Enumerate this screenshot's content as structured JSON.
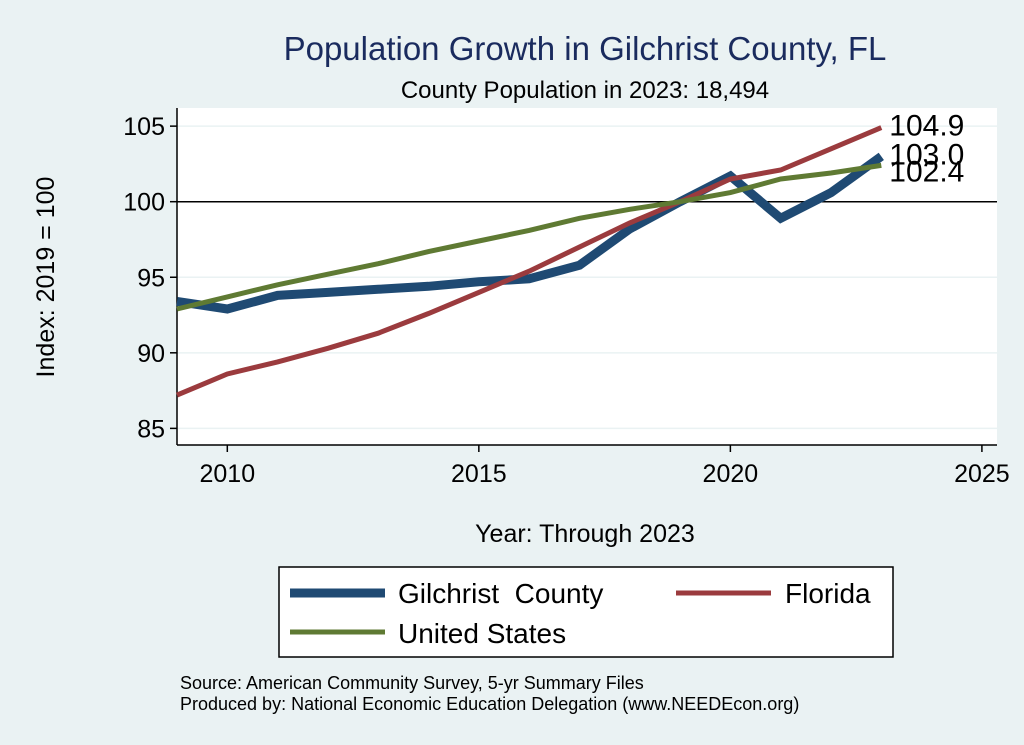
{
  "chart_data": {
    "type": "line",
    "title": "Population Growth in Gilchrist County, FL",
    "subtitle": "County Population in 2023: 18,494",
    "ylabel": "Index: 2019 = 100",
    "xlabel": "Year: Through 2023",
    "xlim": [
      2009,
      2025
    ],
    "ylim": [
      84,
      106
    ],
    "x_ticks": [
      2010,
      2015,
      2020,
      2025
    ],
    "y_ticks": [
      85,
      90,
      95,
      100,
      105
    ],
    "reference_line": 100,
    "grid": true,
    "series": [
      {
        "name": "Gilchrist  County",
        "color": "#1f4a73",
        "x": [
          2009,
          2010,
          2011,
          2012,
          2013,
          2014,
          2015,
          2016,
          2017,
          2018,
          2019,
          2020,
          2021,
          2022,
          2023
        ],
        "values": [
          93.4,
          92.9,
          93.8,
          94.0,
          94.2,
          94.4,
          94.7,
          94.9,
          95.8,
          98.2,
          100.0,
          101.7,
          98.9,
          100.6,
          103.0
        ],
        "end_label": "103.0"
      },
      {
        "name": "Florida",
        "color": "#9b3b3e",
        "x": [
          2009,
          2010,
          2011,
          2012,
          2013,
          2014,
          2015,
          2016,
          2017,
          2018,
          2019,
          2020,
          2021,
          2022,
          2023
        ],
        "values": [
          87.2,
          88.6,
          89.4,
          90.3,
          91.3,
          92.6,
          94.0,
          95.4,
          97.0,
          98.6,
          100.0,
          101.5,
          102.1,
          103.5,
          104.9
        ],
        "end_label": "104.9"
      },
      {
        "name": "United States",
        "color": "#5f7a33",
        "x": [
          2009,
          2010,
          2011,
          2012,
          2013,
          2014,
          2015,
          2016,
          2017,
          2018,
          2019,
          2020,
          2021,
          2022,
          2023
        ],
        "values": [
          92.9,
          93.7,
          94.5,
          95.2,
          95.9,
          96.7,
          97.4,
          98.1,
          98.9,
          99.5,
          100.0,
          100.6,
          101.5,
          101.9,
          102.4
        ],
        "end_label": "102.4"
      }
    ],
    "legend": {
      "placement": "bottom",
      "entries": [
        "Gilchrist  County",
        "Florida",
        "United States"
      ]
    },
    "source": "Source: American Community Survey, 5-yr Summary Files",
    "produced_by": "Produced by: National Economic Education Delegation (www.NEEDEcon.org)"
  }
}
